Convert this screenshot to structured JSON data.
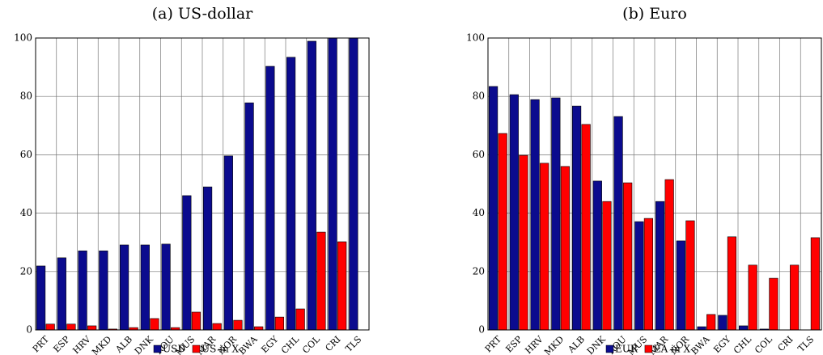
{
  "chart_data": [
    {
      "type": "bar",
      "title": "(a) US-dollar",
      "categories": [
        "PRT",
        "ESP",
        "HRV",
        "MKD",
        "ALB",
        "DNK",
        "ROU",
        "MUS",
        "MAR",
        "NOR",
        "BWA",
        "EGY",
        "CHL",
        "COL",
        "CRI",
        "TLS"
      ],
      "series": [
        {
          "name": "USD",
          "color": "#0b0b8e",
          "values": [
            21.9,
            24.7,
            27.1,
            27.1,
            29.1,
            29.1,
            29.4,
            46,
            49,
            59.6,
            77.8,
            90.3,
            93.4,
            98.9,
            100,
            100
          ]
        },
        {
          "name": "US in X",
          "color": "#ff0000",
          "values": [
            2,
            2,
            1.4,
            0.3,
            0.8,
            3.9,
            0.8,
            6.1,
            2.2,
            3.3,
            1.1,
            4.4,
            7.2,
            33.5,
            30.2,
            0
          ]
        }
      ],
      "ylim": [
        0,
        100
      ],
      "yticks": [
        0,
        20,
        40,
        60,
        80,
        100
      ],
      "grid": true
    },
    {
      "type": "bar",
      "title": "(b) Euro",
      "categories": [
        "PRT",
        "ESP",
        "HRV",
        "MKD",
        "ALB",
        "DNK",
        "ROU",
        "MUS",
        "MAR",
        "NOR",
        "BWA",
        "EGY",
        "CHL",
        "COL",
        "CRI",
        "TLS"
      ],
      "series": [
        {
          "name": "EUR",
          "color": "#0b0b8e",
          "values": [
            83.4,
            80.6,
            78.9,
            79.5,
            76.7,
            51,
            73.1,
            37.1,
            44,
            30.5,
            1.1,
            5,
            1.4,
            0.3,
            0,
            0
          ]
        },
        {
          "name": "EA in X",
          "color": "#ff0000",
          "values": [
            67.3,
            59.8,
            57.1,
            56,
            70.4,
            44,
            50.4,
            38.2,
            51.5,
            37.4,
            5.3,
            31.9,
            22.2,
            17.7,
            22.2,
            31.6
          ]
        }
      ],
      "ylim": [
        0,
        100
      ],
      "yticks": [
        0,
        20,
        40,
        60,
        80,
        100
      ],
      "grid": true
    }
  ]
}
